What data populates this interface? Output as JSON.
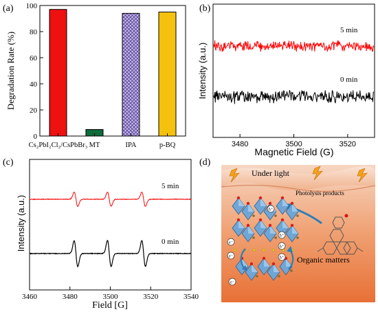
{
  "chart_data": [
    {
      "panel": "(a)",
      "type": "bar",
      "categories": [
        "Cs₂PbI₂Cl₂/CsPbBr₃",
        "MT",
        "IPA",
        "p-BQ"
      ],
      "values": [
        97,
        5,
        94,
        95
      ],
      "colors": [
        "#ee1111",
        "#0f6b3a",
        "#c9b6ee",
        "#f4c20d"
      ],
      "hatched": [
        false,
        false,
        true,
        false
      ],
      "xlabel": "",
      "ylabel": "Degradation Rate (%)",
      "ylim": [
        0,
        100
      ],
      "yticks": [
        0,
        20,
        40,
        60,
        80,
        100
      ]
    },
    {
      "panel": "(b)",
      "type": "line",
      "xlabel": "Magnetic Field (G)",
      "ylabel": "Intensity (a.u.)",
      "xlim": [
        3470,
        3530
      ],
      "xticks": [
        3480,
        3500,
        3520
      ],
      "series": [
        {
          "name": "5 min",
          "color": "#ff0000"
        },
        {
          "name": "0 min",
          "color": "#000000"
        }
      ]
    },
    {
      "panel": "(c)",
      "type": "line",
      "xlabel": "Field [G]",
      "ylabel": "Intensity (a.u.)",
      "xlim": [
        3460,
        3540
      ],
      "xticks": [
        3460,
        3480,
        3500,
        3520,
        3540
      ],
      "peak_centers": [
        3483,
        3499.5,
        3516.5
      ],
      "series": [
        {
          "name": "5 min",
          "color": "#ff0000"
        },
        {
          "name": "0 min",
          "color": "#000000"
        }
      ]
    }
  ],
  "diagram": {
    "panel": "(d)",
    "under_light": "Under light",
    "photolysis": "Photolysis products",
    "organic": "Organic matters",
    "hole": "h⁺",
    "electron": "e⁻"
  }
}
